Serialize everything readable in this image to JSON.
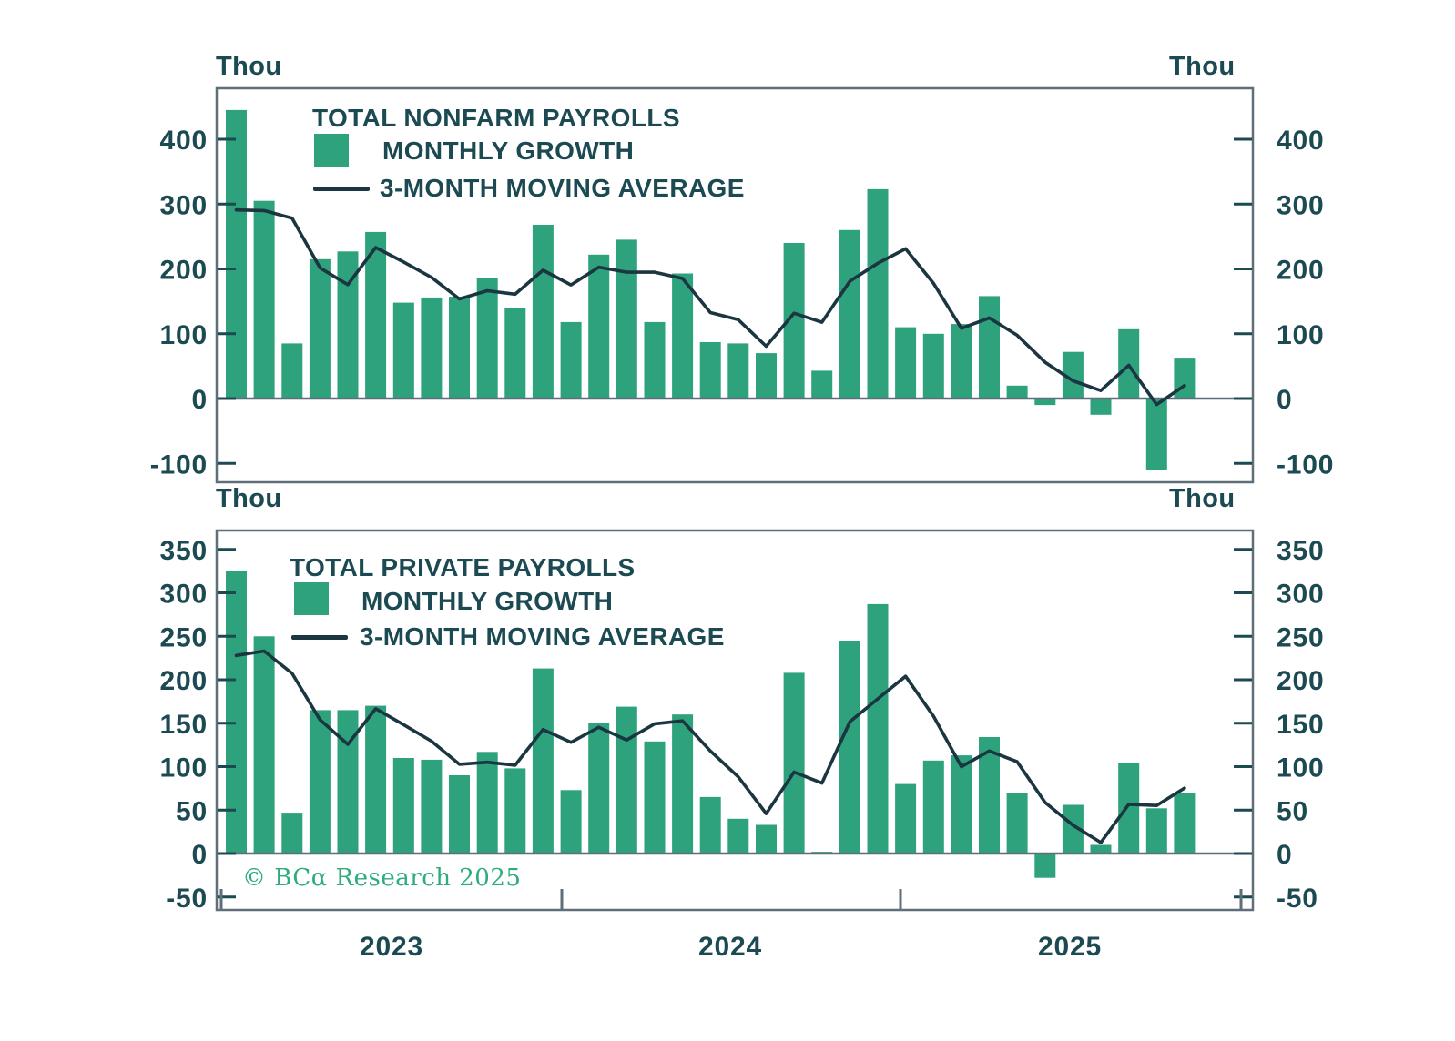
{
  "unit_label": "Thou",
  "copyright": "© BCα Research 2025",
  "x_axis": {
    "year_labels": [
      "2023",
      "2024",
      "2025"
    ]
  },
  "colors": {
    "bar_green": "#2da27c",
    "line_dark": "#1b3641",
    "text_teal": "#1c4a52",
    "frame_gray": "#5e6f79",
    "copyright_green": "#2eac7c"
  },
  "chart_data": [
    {
      "type": "bar",
      "title": "TOTAL NONFARM PAYROLLS",
      "legend": {
        "bar": "MONTHLY GROWTH",
        "line": "3-MONTH MOVING AVERAGE"
      },
      "legend_position": "top-left",
      "grid": false,
      "unit": "Thou",
      "ylim": [
        -130,
        480
      ],
      "yticks": [
        -100,
        0,
        100,
        200,
        300,
        400
      ],
      "series": [
        {
          "name": "MONTHLY GROWTH",
          "type": "bar",
          "values": [
            445,
            305,
            85,
            215,
            227,
            257,
            148,
            156,
            157,
            186,
            140,
            268,
            118,
            222,
            245,
            118,
            193,
            87,
            85,
            70,
            240,
            43,
            260,
            323,
            110,
            100,
            115,
            158,
            20,
            -10,
            72,
            -25,
            107,
            -110,
            63
          ]
        },
        {
          "name": "3-MONTH MOVING AVERAGE",
          "type": "line",
          "values": [
            291,
            290,
            278.3,
            201.7,
            175.7,
            233,
            210.7,
            187,
            153.7,
            166.3,
            161,
            198,
            175.3,
            202.7,
            195,
            195,
            185.3,
            132.7,
            121.7,
            80.7,
            131.7,
            117.7,
            181,
            208.7,
            231,
            177.7,
            108.3,
            124.3,
            97.7,
            56,
            27.3,
            12.3,
            51.3,
            -9.3,
            20
          ]
        }
      ]
    },
    {
      "type": "bar",
      "title": "TOTAL PRIVATE PAYROLLS",
      "legend": {
        "bar": "MONTHLY GROWTH",
        "line": "3-MONTH MOVING AVERAGE"
      },
      "legend_position": "top-left",
      "grid": false,
      "unit": "Thou",
      "ylim": [
        -65,
        372
      ],
      "yticks": [
        -50,
        0,
        50,
        100,
        150,
        200,
        250,
        300,
        350
      ],
      "series": [
        {
          "name": "MONTHLY GROWTH",
          "type": "bar",
          "values": [
            325,
            250,
            47,
            165,
            165,
            170,
            110,
            108,
            90,
            117,
            98,
            213,
            73,
            150,
            169,
            129,
            160,
            65,
            40,
            33,
            208,
            2,
            245,
            287,
            80,
            107,
            113,
            134,
            70,
            -28,
            56,
            10,
            104,
            52,
            70
          ]
        },
        {
          "name": "3-MONTH MOVING AVERAGE",
          "type": "line",
          "values": [
            228,
            233,
            207.3,
            154,
            125.7,
            166.7,
            148.3,
            129.3,
            102.7,
            105,
            101.7,
            142.7,
            128,
            145.3,
            130.7,
            149.3,
            152.7,
            118,
            88.3,
            46,
            93.7,
            81,
            151.7,
            178,
            204,
            158,
            100,
            118,
            105.7,
            58.7,
            32.7,
            12.7,
            56.7,
            55.3,
            75.3
          ]
        }
      ]
    }
  ]
}
